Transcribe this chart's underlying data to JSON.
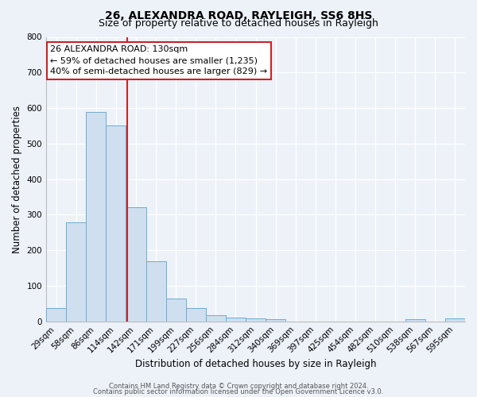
{
  "title": "26, ALEXANDRA ROAD, RAYLEIGH, SS6 8HS",
  "subtitle": "Size of property relative to detached houses in Rayleigh",
  "xlabel": "Distribution of detached houses by size in Rayleigh",
  "ylabel": "Number of detached properties",
  "bar_labels": [
    "29sqm",
    "58sqm",
    "86sqm",
    "114sqm",
    "142sqm",
    "171sqm",
    "199sqm",
    "227sqm",
    "256sqm",
    "284sqm",
    "312sqm",
    "340sqm",
    "369sqm",
    "397sqm",
    "425sqm",
    "454sqm",
    "482sqm",
    "510sqm",
    "538sqm",
    "567sqm",
    "595sqm"
  ],
  "bar_values": [
    38,
    278,
    590,
    550,
    320,
    170,
    65,
    38,
    18,
    10,
    8,
    5,
    0,
    0,
    0,
    0,
    0,
    0,
    5,
    0,
    8
  ],
  "bar_color": "#cfdff0",
  "bar_edge_color": "#6aadd5",
  "ylim": [
    0,
    800
  ],
  "yticks": [
    0,
    100,
    200,
    300,
    400,
    500,
    600,
    700,
    800
  ],
  "annotation_box_text": "26 ALEXANDRA ROAD: 130sqm\n← 59% of detached houses are smaller (1,235)\n40% of semi-detached houses are larger (829) →",
  "annotation_box_color": "#ffffff",
  "annotation_box_edge_color": "#cc2222",
  "line_color": "#cc2222",
  "footer_line1": "Contains HM Land Registry data © Crown copyright and database right 2024.",
  "footer_line2": "Contains public sector information licensed under the Open Government Licence v3.0.",
  "bg_color": "#edf2f9",
  "grid_color": "#ffffff",
  "title_fontsize": 10,
  "subtitle_fontsize": 9,
  "axis_label_fontsize": 8.5,
  "tick_fontsize": 7.5,
  "ann_fontsize": 8,
  "footer_fontsize": 6
}
